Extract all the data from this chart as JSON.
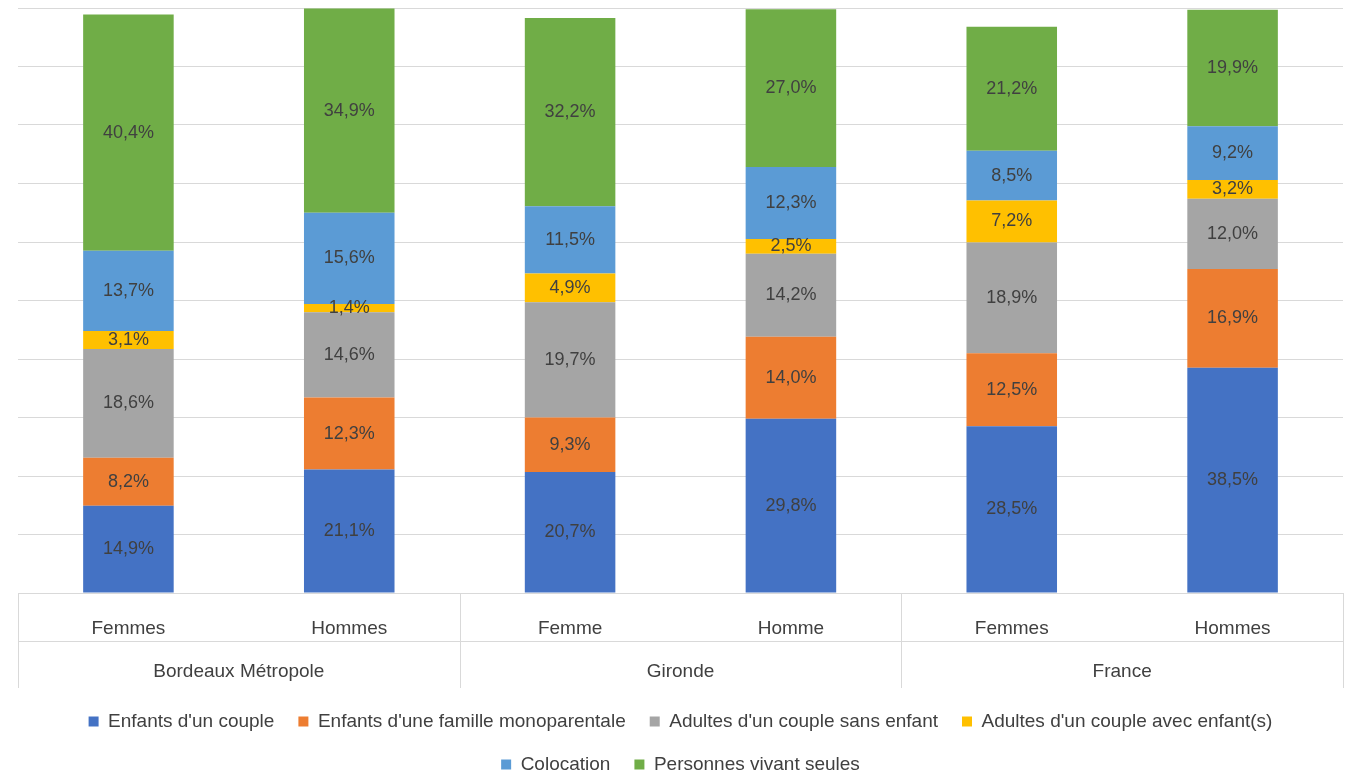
{
  "chart_data": {
    "type": "bar",
    "stacked": true,
    "categories": [
      "Femmes",
      "Hommes",
      "Femme",
      "Homme",
      "Femmes",
      "Hommes"
    ],
    "series": [
      {
        "name": "Enfants d'un couple",
        "color": "#4472c4",
        "values": [
          14.9,
          21.1,
          20.7,
          29.8,
          28.5,
          38.5
        ],
        "value_labels": [
          "14,9%",
          "21,1%",
          "20,7%",
          "29,8%",
          "28,5%",
          "38,5%"
        ]
      },
      {
        "name": "Enfants d'une famille monoparentale",
        "color": "#ed7d31",
        "values": [
          8.2,
          12.3,
          9.3,
          14.0,
          12.5,
          16.9
        ],
        "value_labels": [
          "8,2%",
          "12,3%",
          "9,3%",
          "14,0%",
          "12,5%",
          "16,9%"
        ]
      },
      {
        "name": "Adultes d'un couple sans enfant",
        "color": "#a5a5a5",
        "values": [
          18.6,
          14.6,
          19.7,
          14.2,
          18.9,
          12.0
        ],
        "value_labels": [
          "18,6%",
          "14,6%",
          "19,7%",
          "14,2%",
          "18,9%",
          "12,0%"
        ]
      },
      {
        "name": "Adultes d'un couple avec enfant(s)",
        "color": "#ffc000",
        "values": [
          3.1,
          1.4,
          4.9,
          2.5,
          7.2,
          3.2
        ],
        "value_labels": [
          "3,1%",
          "1,4%",
          "4,9%",
          "2,5%",
          "7,2%",
          "3,2%"
        ]
      },
      {
        "name": "Colocation",
        "color": "#5b9bd5",
        "values": [
          13.7,
          15.6,
          11.5,
          12.3,
          8.5,
          9.2
        ],
        "value_labels": [
          "13,7%",
          "15,6%",
          "11,5%",
          "12,3%",
          "8,5%",
          "9,2%"
        ]
      },
      {
        "name": "Personnes vivant seules",
        "color": "#70ad47",
        "values": [
          40.4,
          34.9,
          32.2,
          27.0,
          21.2,
          19.9
        ],
        "value_labels": [
          "40,4%",
          "34,9%",
          "32,2%",
          "27,0%",
          "21,2%",
          "19,9%"
        ]
      }
    ],
    "annotations": [
      "Bordeaux Métropole",
      "Gironde",
      "France"
    ],
    "grid": "y",
    "tick_labels": "x",
    "legend": "bottom"
  }
}
